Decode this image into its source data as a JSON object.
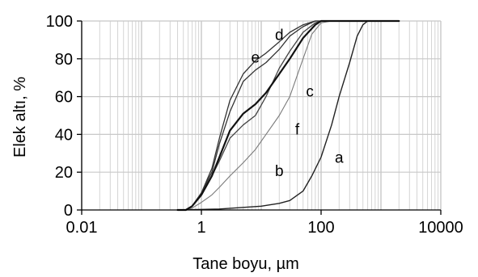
{
  "chart_data": {
    "type": "line",
    "xlabel": "Tane boyu, µm",
    "ylabel": "Elek altı, %",
    "xscale": "log",
    "xlim": [
      0.01,
      10000
    ],
    "ylim": [
      0,
      100
    ],
    "xticks": [
      0.01,
      1,
      100,
      10000
    ],
    "xtick_labels": [
      "0.01",
      "1",
      "100",
      "10000"
    ],
    "yticks": [
      0,
      20,
      40,
      60,
      80,
      100
    ],
    "ytick_labels": [
      "0",
      "20",
      "40",
      "60",
      "80",
      "100"
    ],
    "grid": true,
    "series": [
      {
        "name": "a",
        "color": "#222222",
        "width": 1.4,
        "points": [
          [
            0.4,
            0
          ],
          [
            2,
            0.5
          ],
          [
            10,
            2
          ],
          [
            20,
            3.5
          ],
          [
            30,
            5
          ],
          [
            50,
            10
          ],
          [
            70,
            18
          ],
          [
            100,
            28
          ],
          [
            150,
            45
          ],
          [
            200,
            60
          ],
          [
            300,
            78
          ],
          [
            400,
            92
          ],
          [
            500,
            98
          ],
          [
            600,
            100
          ],
          [
            2000,
            100
          ]
        ]
      },
      {
        "name": "b",
        "color": "#7a7a7a",
        "width": 1.1,
        "points": [
          [
            0.4,
            0
          ],
          [
            0.55,
            0
          ],
          [
            0.7,
            1
          ],
          [
            1,
            4
          ],
          [
            1.5,
            8
          ],
          [
            2,
            12
          ],
          [
            3,
            18
          ],
          [
            5,
            25
          ],
          [
            8,
            32
          ],
          [
            12,
            40
          ],
          [
            20,
            50
          ],
          [
            30,
            60
          ],
          [
            50,
            80
          ],
          [
            70,
            93
          ],
          [
            100,
            99
          ],
          [
            150,
            100
          ],
          [
            2000,
            100
          ]
        ]
      },
      {
        "name": "c",
        "color": "#444444",
        "width": 1.3,
        "points": [
          [
            0.4,
            0
          ],
          [
            0.55,
            0
          ],
          [
            0.7,
            2
          ],
          [
            1,
            8
          ],
          [
            1.5,
            18
          ],
          [
            2,
            26
          ],
          [
            3,
            38
          ],
          [
            5,
            45
          ],
          [
            8,
            50
          ],
          [
            12,
            60
          ],
          [
            20,
            75
          ],
          [
            30,
            84
          ],
          [
            50,
            94
          ],
          [
            80,
            99
          ],
          [
            100,
            100
          ],
          [
            2000,
            100
          ]
        ]
      },
      {
        "name": "d",
        "color": "#333333",
        "width": 1.3,
        "points": [
          [
            0.4,
            0
          ],
          [
            0.55,
            0
          ],
          [
            0.7,
            2
          ],
          [
            1,
            9
          ],
          [
            1.5,
            22
          ],
          [
            2,
            38
          ],
          [
            3,
            58
          ],
          [
            5,
            72
          ],
          [
            8,
            79
          ],
          [
            12,
            83
          ],
          [
            20,
            89
          ],
          [
            30,
            94
          ],
          [
            50,
            98
          ],
          [
            80,
            100
          ],
          [
            2000,
            100
          ]
        ]
      },
      {
        "name": "e",
        "color": "#333333",
        "width": 1.3,
        "points": [
          [
            0.4,
            0
          ],
          [
            0.55,
            0
          ],
          [
            0.7,
            2
          ],
          [
            1,
            9
          ],
          [
            1.5,
            20
          ],
          [
            2,
            35
          ],
          [
            3,
            52
          ],
          [
            5,
            68
          ],
          [
            8,
            74
          ],
          [
            12,
            78
          ],
          [
            20,
            85
          ],
          [
            30,
            92
          ],
          [
            50,
            97
          ],
          [
            80,
            100
          ],
          [
            2000,
            100
          ]
        ]
      },
      {
        "name": "f",
        "color": "#111111",
        "width": 2.2,
        "points": [
          [
            0.4,
            0
          ],
          [
            0.55,
            0
          ],
          [
            0.7,
            2
          ],
          [
            1,
            8
          ],
          [
            1.5,
            18
          ],
          [
            2,
            28
          ],
          [
            3,
            42
          ],
          [
            5,
            51
          ],
          [
            8,
            56
          ],
          [
            12,
            62
          ],
          [
            20,
            72
          ],
          [
            30,
            80
          ],
          [
            50,
            91
          ],
          [
            80,
            98
          ],
          [
            100,
            100
          ],
          [
            2000,
            100
          ]
        ]
      }
    ],
    "labels": [
      {
        "text": "a",
        "x": 200,
        "y": 25
      },
      {
        "text": "b",
        "x": 20,
        "y": 18
      },
      {
        "text": "c",
        "x": 65,
        "y": 60
      },
      {
        "text": "d",
        "x": 20,
        "y": 90
      },
      {
        "text": "e",
        "x": 8,
        "y": 78
      },
      {
        "text": "f",
        "x": 40,
        "y": 40
      }
    ]
  }
}
